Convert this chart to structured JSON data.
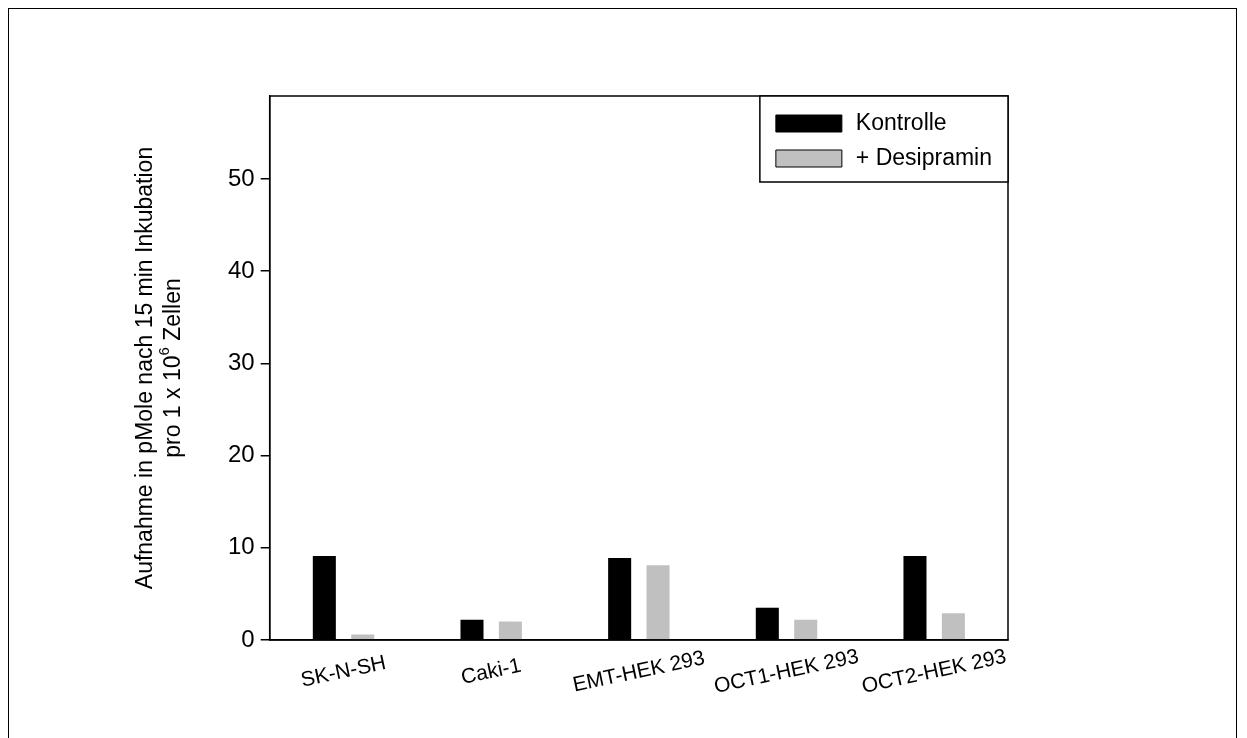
{
  "chart_data": {
    "type": "bar",
    "ylabel": "Aufnahme in pMole nach 15 min Inkubation\npro 1 x 10$^{6}$ Zellen",
    "categories": [
      "SK-N-SH",
      "Caki-1",
      "EMT-HEK 293",
      "OCT1-HEK 293",
      "OCT2-HEK 293"
    ],
    "series": [
      {
        "name": "Kontrolle",
        "color": "#000000",
        "values": [
          9.1,
          2.2,
          8.9,
          3.5,
          9.1
        ]
      },
      {
        "name": "+ Desipramin",
        "color": "#c0c0c0",
        "values": [
          0.6,
          2.0,
          8.1,
          2.2,
          2.9
        ]
      }
    ],
    "ylim": [
      0,
      59
    ],
    "yticks": [
      0,
      10,
      20,
      30,
      40,
      50
    ],
    "grid": false,
    "legend": "top right"
  }
}
